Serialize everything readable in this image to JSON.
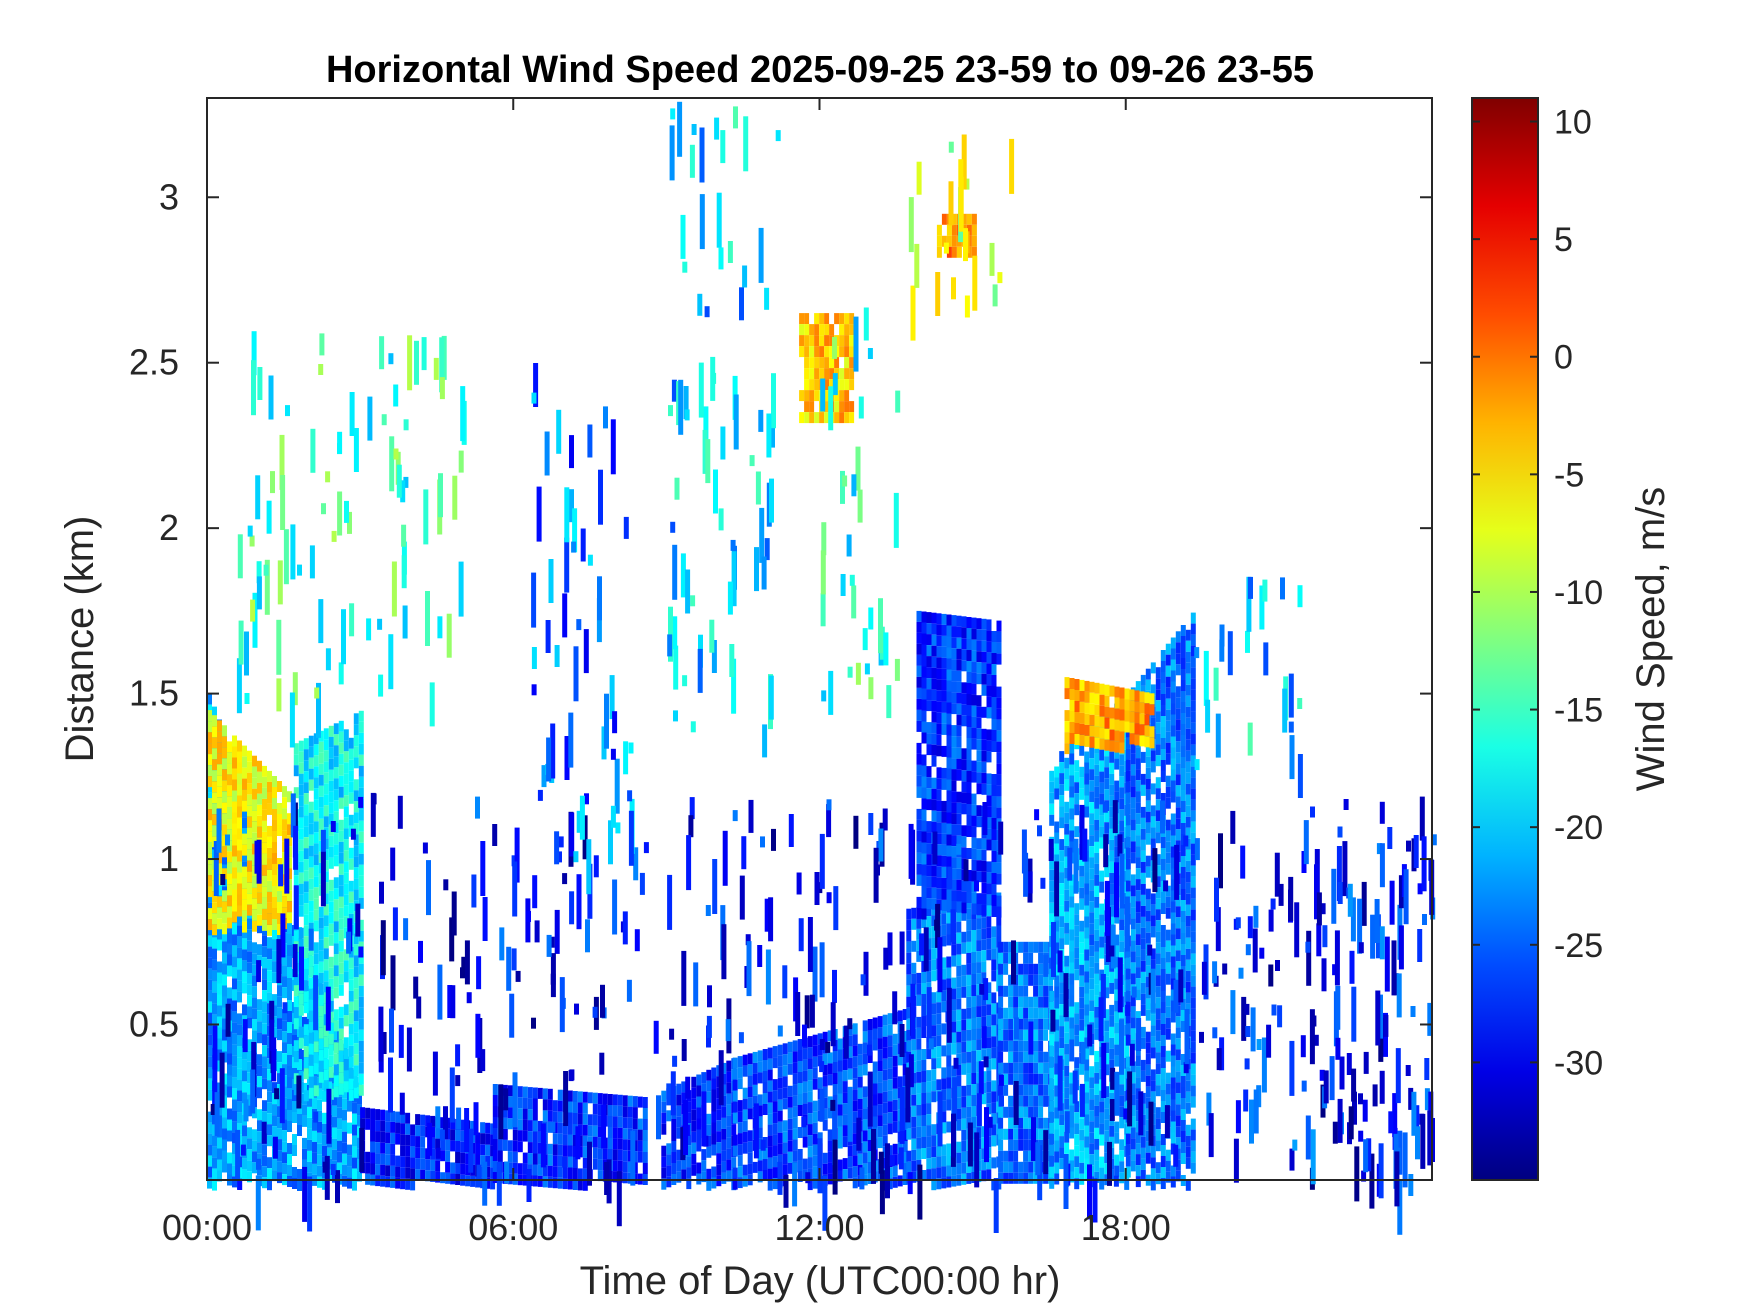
{
  "chart_data": {
    "type": "heatmap",
    "title": "Horizontal Wind Speed 2025-09-25 23-59 to 09-26 23-55",
    "xlabel": "Time of Day (UTC00:00 hr)",
    "ylabel": "Distance (km)",
    "xlim": [
      0,
      24
    ],
    "ylim": [
      0.03,
      3.3
    ],
    "x_ticks": [
      {
        "value": 0,
        "label": "00:00"
      },
      {
        "value": 6,
        "label": "06:00"
      },
      {
        "value": 12,
        "label": "12:00"
      },
      {
        "value": 18,
        "label": "18:00"
      }
    ],
    "y_ticks": [
      {
        "value": 0.5,
        "label": "0.5"
      },
      {
        "value": 1,
        "label": "1"
      },
      {
        "value": 1.5,
        "label": "1.5"
      },
      {
        "value": 2,
        "label": "2"
      },
      {
        "value": 2.5,
        "label": "2.5"
      },
      {
        "value": 3,
        "label": "3"
      }
    ],
    "grid": false,
    "colormap": "jet",
    "colorbar": {
      "label": "Wind Speed, m/s",
      "range": [
        -35,
        11
      ],
      "ticks": [
        {
          "value": 10,
          "label": "10"
        },
        {
          "value": 5,
          "label": "5"
        },
        {
          "value": 0,
          "label": "0"
        },
        {
          "value": -5,
          "label": "-5"
        },
        {
          "value": -10,
          "label": "-10"
        },
        {
          "value": -15,
          "label": "-15"
        },
        {
          "value": -20,
          "label": "-20"
        },
        {
          "value": -25,
          "label": "-25"
        },
        {
          "value": -30,
          "label": "-30"
        }
      ]
    },
    "regions": [
      {
        "x": [
          0.0,
          3.0
        ],
        "y_from": [
          0.03,
          0.03
        ],
        "y_to": [
          1.5,
          0.3
        ],
        "value": -22
      },
      {
        "x": [
          0.0,
          1.6
        ],
        "y_from": [
          0.8,
          0.8
        ],
        "y_to": [
          1.45,
          1.2
        ],
        "value": -6
      },
      {
        "x": [
          1.7,
          3.0
        ],
        "y_from": [
          0.3,
          0.3
        ],
        "y_to": [
          1.35,
          1.45
        ],
        "value": -18
      },
      {
        "x": [
          3.0,
          5.6
        ],
        "y_from": [
          0.03,
          0.03
        ],
        "y_to": [
          0.25,
          0.2
        ],
        "value": -28
      },
      {
        "x": [
          5.6,
          8.6
        ],
        "y_from": [
          0.03,
          0.03
        ],
        "y_to": [
          0.32,
          0.28
        ],
        "value": -27
      },
      {
        "x": [
          8.9,
          10.3
        ],
        "y_from": [
          0.03,
          0.03
        ],
        "y_to": [
          0.3,
          0.4
        ],
        "value": -27
      },
      {
        "x": [
          10.3,
          13.7
        ],
        "y_from": [
          0.03,
          0.03
        ],
        "y_to": [
          0.4,
          0.55
        ],
        "value": -26
      },
      {
        "x": [
          13.7,
          15.5
        ],
        "y_from": [
          0.03,
          0.03
        ],
        "y_to": [
          0.85,
          0.9
        ],
        "value": -24
      },
      {
        "x": [
          13.9,
          15.5
        ],
        "y_from": [
          0.85,
          0.85
        ],
        "y_to": [
          1.75,
          1.72
        ],
        "value": -27
      },
      {
        "x": [
          15.5,
          16.5
        ],
        "y_from": [
          0.03,
          0.03
        ],
        "y_to": [
          0.75,
          0.75
        ],
        "value": -24
      },
      {
        "x": [
          16.5,
          18.0
        ],
        "y_from": [
          0.03,
          0.03
        ],
        "y_to": [
          1.3,
          1.5
        ],
        "value": -22
      },
      {
        "x": [
          18.0,
          19.3
        ],
        "y_from": [
          0.03,
          0.03
        ],
        "y_to": [
          1.5,
          1.75
        ],
        "value": -24
      },
      {
        "x": [
          16.8,
          18.5
        ],
        "y_from": [
          1.35,
          1.35
        ],
        "y_to": [
          1.55,
          1.5
        ],
        "value": -2
      },
      {
        "x": [
          11.6,
          12.6
        ],
        "y_from": [
          2.35,
          2.35
        ],
        "y_to": [
          2.65,
          2.65
        ],
        "value": -4
      },
      {
        "x": [
          14.3,
          15.0
        ],
        "y_from": [
          2.82,
          2.82
        ],
        "y_to": [
          2.95,
          2.95
        ],
        "value": -1
      }
    ],
    "scatter_regions": [
      {
        "x": [
          0.0,
          24.0
        ],
        "y": [
          0.03,
          1.2
        ],
        "value": -29
      },
      {
        "x": [
          9.0,
          11.2
        ],
        "y": [
          1.4,
          3.3
        ],
        "value": -20
      },
      {
        "x": [
          6.3,
          8.3
        ],
        "y": [
          0.9,
          2.5
        ],
        "value": -24
      },
      {
        "x": [
          12.0,
          13.6
        ],
        "y": [
          1.5,
          2.7
        ],
        "value": -16
      },
      {
        "x": [
          13.5,
          15.8
        ],
        "y": [
          2.7,
          3.2
        ],
        "value": -8
      },
      {
        "x": [
          19.3,
          21.5
        ],
        "y": [
          1.3,
          1.9
        ],
        "value": -20
      },
      {
        "x": [
          0.5,
          5.0
        ],
        "y": [
          1.5,
          2.6
        ],
        "value": -15
      },
      {
        "x": [
          20.5,
          24.0
        ],
        "y": [
          0.03,
          1.1
        ],
        "value": -28
      }
    ]
  }
}
